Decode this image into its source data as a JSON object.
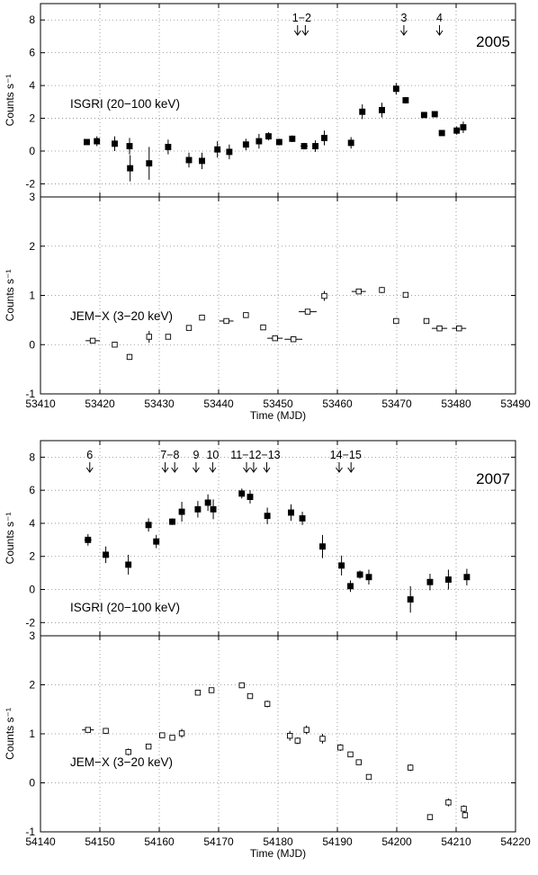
{
  "figure": {
    "background": "#ffffff",
    "ink": "#000000",
    "grid_color": "#888888",
    "marker_filled": "#000000",
    "marker_open": "#ffffff"
  },
  "chart_data": [
    {
      "type": "scatter",
      "id": "2005-isgri",
      "year_label": "2005",
      "instrument_label": "ISGRI (20−100 keV)",
      "ylabel": "Counts s⁻¹",
      "xlabel": "",
      "xlim": [
        53410,
        53490
      ],
      "ylim": [
        -2.8,
        9.0
      ],
      "yticks": [
        -2,
        0,
        2,
        4,
        6,
        8
      ],
      "xticks": [],
      "grid": true,
      "marker": "filled-square",
      "points": [
        {
          "x": 53417.8,
          "y": 0.55,
          "xe": 0.5,
          "ye": 0.15
        },
        {
          "x": 53419.5,
          "y": 0.6,
          "xe": 0.4,
          "ye": 0.3
        },
        {
          "x": 53422.5,
          "y": 0.45,
          "xe": 0.4,
          "ye": 0.45
        },
        {
          "x": 53425.0,
          "y": 0.3,
          "xe": 0.3,
          "ye": 0.5
        },
        {
          "x": 53425.1,
          "y": -1.05,
          "xe": 0.3,
          "ye": 0.8
        },
        {
          "x": 53428.3,
          "y": -0.75,
          "xe": 0.4,
          "ye": 1.0
        },
        {
          "x": 53431.5,
          "y": 0.25,
          "xe": 0.4,
          "ye": 0.45
        },
        {
          "x": 53435.0,
          "y": -0.55,
          "xe": 0.4,
          "ye": 0.45
        },
        {
          "x": 53437.2,
          "y": -0.6,
          "xe": 0.4,
          "ye": 0.5
        },
        {
          "x": 53439.8,
          "y": 0.1,
          "xe": 0.4,
          "ye": 0.5
        },
        {
          "x": 53441.8,
          "y": -0.05,
          "xe": 0.4,
          "ye": 0.45
        },
        {
          "x": 53444.6,
          "y": 0.4,
          "xe": 0.4,
          "ye": 0.35
        },
        {
          "x": 53446.8,
          "y": 0.6,
          "xe": 0.4,
          "ye": 0.45
        },
        {
          "x": 53448.4,
          "y": 0.9,
          "xe": 0.4,
          "ye": 0.25
        },
        {
          "x": 53450.2,
          "y": 0.55,
          "xe": 0.5,
          "ye": 0.2
        },
        {
          "x": 53452.4,
          "y": 0.75,
          "xe": 0.4,
          "ye": 0.2
        },
        {
          "x": 53454.4,
          "y": 0.3,
          "xe": 0.6,
          "ye": 0.2
        },
        {
          "x": 53456.3,
          "y": 0.3,
          "xe": 0.5,
          "ye": 0.35
        },
        {
          "x": 53457.8,
          "y": 0.8,
          "xe": 0.4,
          "ye": 0.45
        },
        {
          "x": 53462.3,
          "y": 0.5,
          "xe": 0.4,
          "ye": 0.35
        },
        {
          "x": 53464.2,
          "y": 2.4,
          "xe": 0.4,
          "ye": 0.45
        },
        {
          "x": 53467.5,
          "y": 2.5,
          "xe": 0.4,
          "ye": 0.45
        },
        {
          "x": 53469.9,
          "y": 3.8,
          "xe": 0.4,
          "ye": 0.35
        },
        {
          "x": 53471.5,
          "y": 3.1,
          "xe": 0.4,
          "ye": 0.2
        },
        {
          "x": 53474.6,
          "y": 2.2,
          "xe": 0.5,
          "ye": 0.1
        },
        {
          "x": 53476.4,
          "y": 2.25,
          "xe": 0.5,
          "ye": 0.15
        },
        {
          "x": 53477.6,
          "y": 1.1,
          "xe": 0.5,
          "ye": 0.15
        },
        {
          "x": 53480.1,
          "y": 1.25,
          "xe": 0.5,
          "ye": 0.25
        },
        {
          "x": 53481.2,
          "y": 1.45,
          "xe": 0.5,
          "ye": 0.35
        }
      ],
      "annotations": [
        {
          "text": "1−2",
          "x": 53454.0,
          "arrows": [
            53453.3,
            53454.6
          ]
        },
        {
          "text": "3",
          "x": 53471.2,
          "arrows": [
            53471.2
          ]
        },
        {
          "text": "4",
          "x": 53477.2,
          "arrows": [
            53477.2
          ]
        }
      ]
    },
    {
      "type": "scatter",
      "id": "2005-jemx",
      "year_label": "",
      "instrument_label": "JEM−X (3−20 keV)",
      "ylabel": "Counts s⁻¹",
      "xlabel": "Time (MJD)",
      "xlim": [
        53410,
        53490
      ],
      "ylim": [
        -1,
        3
      ],
      "yticks": [
        -1,
        0,
        1,
        2,
        3
      ],
      "xticks": [
        53410,
        53420,
        53430,
        53440,
        53450,
        53460,
        53470,
        53480,
        53490
      ],
      "grid": true,
      "marker": "open-square",
      "points": [
        {
          "x": 53418.8,
          "y": 0.08,
          "xe": 1.2,
          "ye": 0.03
        },
        {
          "x": 53422.5,
          "y": 0.0,
          "xe": 0.3,
          "ye": 0.04
        },
        {
          "x": 53425.0,
          "y": -0.25,
          "xe": 0.3,
          "ye": 0.06
        },
        {
          "x": 53428.3,
          "y": 0.16,
          "xe": 0.3,
          "ye": 0.12
        },
        {
          "x": 53431.5,
          "y": 0.16,
          "xe": 0.4,
          "ye": 0.05
        },
        {
          "x": 53435.0,
          "y": 0.34,
          "xe": 0.4,
          "ye": 0.05
        },
        {
          "x": 53437.2,
          "y": 0.55,
          "xe": 0.3,
          "ye": 0.05
        },
        {
          "x": 53441.3,
          "y": 0.48,
          "xe": 1.2,
          "ye": 0.03
        },
        {
          "x": 53444.6,
          "y": 0.6,
          "xe": 0.4,
          "ye": 0.03
        },
        {
          "x": 53447.5,
          "y": 0.35,
          "xe": 0.4,
          "ye": 0.03
        },
        {
          "x": 53449.5,
          "y": 0.13,
          "xe": 1.3,
          "ye": 0.03
        },
        {
          "x": 53452.6,
          "y": 0.11,
          "xe": 1.5,
          "ye": 0.03
        },
        {
          "x": 53455.0,
          "y": 0.67,
          "xe": 1.5,
          "ye": 0.02
        },
        {
          "x": 53457.8,
          "y": 0.99,
          "xe": 0.4,
          "ye": 0.1
        },
        {
          "x": 53463.6,
          "y": 1.08,
          "xe": 1.2,
          "ye": 0.03
        },
        {
          "x": 53467.5,
          "y": 1.11,
          "xe": 0.4,
          "ye": 0.06
        },
        {
          "x": 53469.9,
          "y": 0.48,
          "xe": 0.3,
          "ye": 0.06
        },
        {
          "x": 53471.5,
          "y": 1.01,
          "xe": 0.3,
          "ye": 0.03
        },
        {
          "x": 53475.0,
          "y": 0.48,
          "xe": 0.5,
          "ye": 0.02
        },
        {
          "x": 53477.2,
          "y": 0.33,
          "xe": 1.3,
          "ye": 0.02
        },
        {
          "x": 53480.5,
          "y": 0.33,
          "xe": 1.2,
          "ye": 0.02
        }
      ],
      "annotations": []
    },
    {
      "type": "scatter",
      "id": "2007-isgri",
      "year_label": "2007",
      "instrument_label": "ISGRI (20−100 keV)",
      "ylabel": "Counts s⁻¹",
      "xlabel": "",
      "xlim": [
        54140,
        54220
      ],
      "ylim": [
        -2.8,
        9.0
      ],
      "yticks": [
        -2,
        0,
        2,
        4,
        6,
        8
      ],
      "xticks": [],
      "grid": true,
      "marker": "filled-square",
      "points": [
        {
          "x": 54148.0,
          "y": 3.0,
          "xe": 0.6,
          "ye": 0.35
        },
        {
          "x": 54151.0,
          "y": 2.1,
          "xe": 0.4,
          "ye": 0.5
        },
        {
          "x": 54154.8,
          "y": 1.5,
          "xe": 0.4,
          "ye": 0.6
        },
        {
          "x": 54158.2,
          "y": 3.9,
          "xe": 0.4,
          "ye": 0.4
        },
        {
          "x": 54159.5,
          "y": 2.9,
          "xe": 0.4,
          "ye": 0.4
        },
        {
          "x": 54162.2,
          "y": 4.1,
          "xe": 0.5,
          "ye": 0.2
        },
        {
          "x": 54163.8,
          "y": 4.7,
          "xe": 0.4,
          "ye": 0.6
        },
        {
          "x": 54166.5,
          "y": 4.85,
          "xe": 0.4,
          "ye": 0.5
        },
        {
          "x": 54168.2,
          "y": 5.25,
          "xe": 0.4,
          "ye": 0.5
        },
        {
          "x": 54169.1,
          "y": 4.85,
          "xe": 0.4,
          "ye": 0.6
        },
        {
          "x": 54173.9,
          "y": 5.8,
          "xe": 0.5,
          "ye": 0.3
        },
        {
          "x": 54175.3,
          "y": 5.6,
          "xe": 0.5,
          "ye": 0.4
        },
        {
          "x": 54178.2,
          "y": 4.45,
          "xe": 0.4,
          "ye": 0.5
        },
        {
          "x": 54182.2,
          "y": 4.65,
          "xe": 0.4,
          "ye": 0.5
        },
        {
          "x": 54184.1,
          "y": 4.3,
          "xe": 0.4,
          "ye": 0.4
        },
        {
          "x": 54187.5,
          "y": 2.6,
          "xe": 0.4,
          "ye": 0.7
        },
        {
          "x": 54190.7,
          "y": 1.45,
          "xe": 0.4,
          "ye": 0.6
        },
        {
          "x": 54192.2,
          "y": 0.2,
          "xe": 0.4,
          "ye": 0.35
        },
        {
          "x": 54193.8,
          "y": 0.9,
          "xe": 0.5,
          "ye": 0.25
        },
        {
          "x": 54195.3,
          "y": 0.75,
          "xe": 0.4,
          "ye": 0.45
        },
        {
          "x": 54202.3,
          "y": -0.6,
          "xe": 0.4,
          "ye": 0.8
        },
        {
          "x": 54205.6,
          "y": 0.45,
          "xe": 0.4,
          "ye": 0.5
        },
        {
          "x": 54208.7,
          "y": 0.6,
          "xe": 0.4,
          "ye": 0.6
        },
        {
          "x": 54211.8,
          "y": 0.75,
          "xe": 0.4,
          "ye": 0.5
        }
      ],
      "annotations": [
        {
          "text": "6",
          "x": 54148.3,
          "arrows": [
            54148.3
          ]
        },
        {
          "text": "7−8",
          "x": 54161.8,
          "arrows": [
            54161.0,
            54162.6
          ]
        },
        {
          "text": "9",
          "x": 54166.2,
          "arrows": [
            54166.2
          ]
        },
        {
          "text": "10",
          "x": 54169.0,
          "arrows": [
            54169.0
          ]
        },
        {
          "text": "11−12−13",
          "x": 54176.2,
          "arrows": [
            54174.7,
            54175.9,
            54178.1
          ]
        },
        {
          "text": "14−15",
          "x": 54191.4,
          "arrows": [
            54190.3,
            54192.3
          ]
        }
      ]
    },
    {
      "type": "scatter",
      "id": "2007-jemx",
      "year_label": "",
      "instrument_label": "JEM−X (3−20 keV)",
      "ylabel": "Counts s⁻¹",
      "xlabel": "Time (MJD)",
      "xlim": [
        54140,
        54220
      ],
      "ylim": [
        -1,
        3
      ],
      "yticks": [
        -1,
        0,
        1,
        2,
        3
      ],
      "xticks": [
        54140,
        54150,
        54160,
        54170,
        54180,
        54190,
        54200,
        54210,
        54220
      ],
      "grid": true,
      "marker": "open-square",
      "points": [
        {
          "x": 54148.0,
          "y": 1.08,
          "xe": 1.0,
          "ye": 0.04
        },
        {
          "x": 54151.0,
          "y": 1.06,
          "xe": 0.4,
          "ye": 0.06
        },
        {
          "x": 54154.8,
          "y": 0.63,
          "xe": 0.4,
          "ye": 0.07
        },
        {
          "x": 54158.2,
          "y": 0.74,
          "xe": 0.5,
          "ye": 0.04
        },
        {
          "x": 54160.5,
          "y": 0.97,
          "xe": 0.5,
          "ye": 0.04
        },
        {
          "x": 54162.2,
          "y": 0.92,
          "xe": 0.5,
          "ye": 0.04
        },
        {
          "x": 54163.8,
          "y": 1.01,
          "xe": 0.4,
          "ye": 0.09
        },
        {
          "x": 54166.5,
          "y": 1.84,
          "xe": 0.4,
          "ye": 0.05
        },
        {
          "x": 54168.8,
          "y": 1.89,
          "xe": 0.5,
          "ye": 0.05
        },
        {
          "x": 54173.9,
          "y": 1.99,
          "xe": 0.5,
          "ye": 0.06
        },
        {
          "x": 54175.3,
          "y": 1.77,
          "xe": 0.5,
          "ye": 0.03
        },
        {
          "x": 54178.2,
          "y": 1.61,
          "xe": 0.4,
          "ye": 0.07
        },
        {
          "x": 54182.0,
          "y": 0.96,
          "xe": 0.4,
          "ye": 0.1
        },
        {
          "x": 54183.3,
          "y": 0.86,
          "xe": 0.4,
          "ye": 0.07
        },
        {
          "x": 54184.8,
          "y": 1.08,
          "xe": 0.4,
          "ye": 0.09
        },
        {
          "x": 54187.5,
          "y": 0.9,
          "xe": 0.4,
          "ye": 0.1
        },
        {
          "x": 54190.5,
          "y": 0.72,
          "xe": 0.4,
          "ye": 0.07
        },
        {
          "x": 54192.2,
          "y": 0.58,
          "xe": 0.4,
          "ye": 0.04
        },
        {
          "x": 54193.6,
          "y": 0.42,
          "xe": 0.5,
          "ye": 0.03
        },
        {
          "x": 54195.3,
          "y": 0.12,
          "xe": 0.4,
          "ye": 0.03
        },
        {
          "x": 54202.3,
          "y": 0.31,
          "xe": 0.4,
          "ye": 0.07
        },
        {
          "x": 54205.6,
          "y": -0.7,
          "xe": 0.4,
          "ye": 0.06
        },
        {
          "x": 54208.7,
          "y": -0.4,
          "xe": 0.4,
          "ye": 0.08
        },
        {
          "x": 54211.3,
          "y": -0.53,
          "xe": 0.3,
          "ye": 0.07
        },
        {
          "x": 54211.5,
          "y": -0.66,
          "xe": 0.3,
          "ye": 0.07
        }
      ],
      "annotations": []
    }
  ]
}
